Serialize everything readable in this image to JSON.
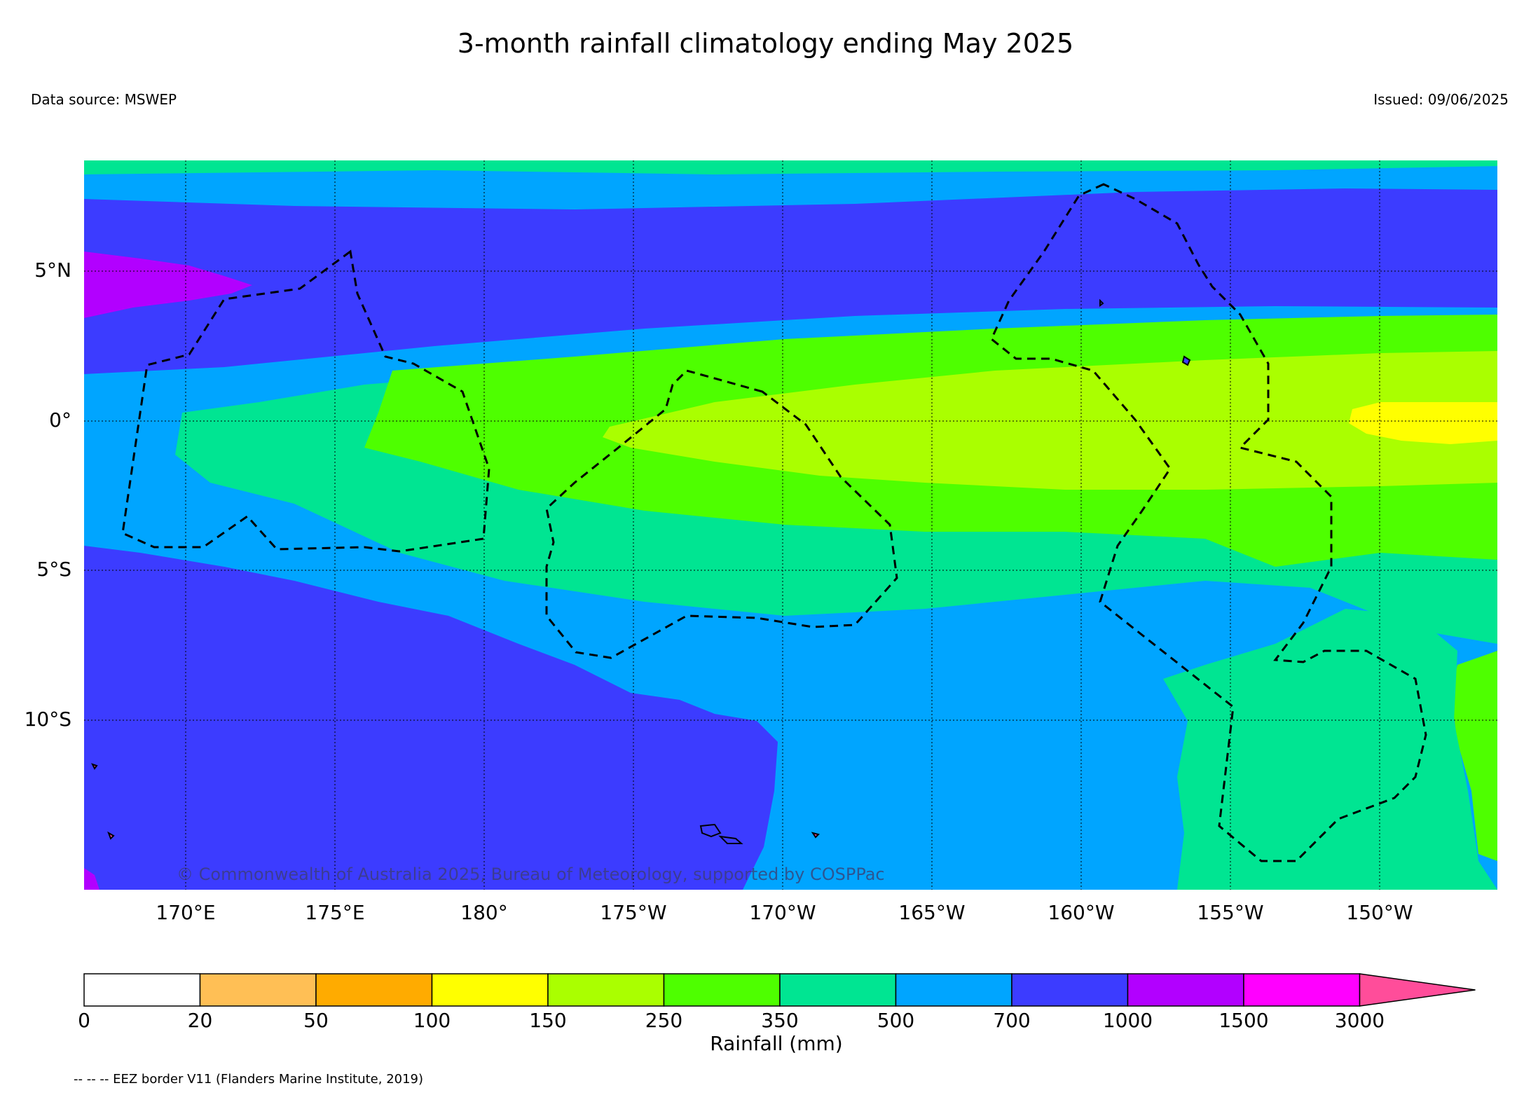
{
  "title": "3-month rainfall climatology ending May 2025",
  "data_source": "Data source: MSWEP",
  "issued": "Issued: 09/06/2025",
  "copyright": "© Commonwealth of Australia 2025, Bureau of Meteorology, supported by COSPPac",
  "lat_labels": [
    "5°N",
    "0°",
    "5°S",
    "10°S"
  ],
  "lon_labels": [
    "170°E",
    "175°E",
    "180°",
    "175°W",
    "170°W",
    "165°W",
    "160°W",
    "155°W",
    "150°W"
  ],
  "legend": {
    "title": "Rainfall (mm)",
    "ticks": [
      "0",
      "20",
      "50",
      "100",
      "150",
      "250",
      "350",
      "500",
      "700",
      "1000",
      "1500",
      "3000"
    ],
    "colors": [
      "#ffffff",
      "#ffbf55",
      "#ffab00",
      "#ffff00",
      "#aaff00",
      "#4eff00",
      "#00e592",
      "#00a5ff",
      "#3c3cff",
      "#b200ff",
      "#ff00ff",
      "#ff4d9a"
    ]
  },
  "footnote": "-- -- -- EEZ border V11 (Flanders Marine Institute, 2019)"
}
